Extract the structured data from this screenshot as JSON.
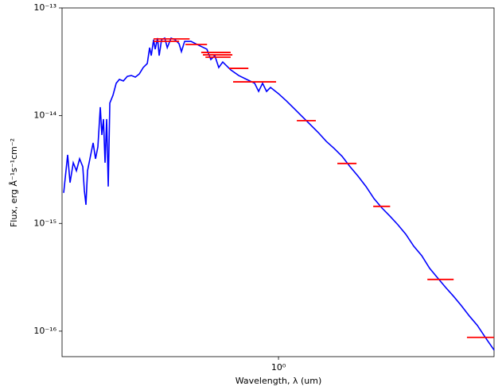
{
  "chart_data": {
    "type": "sed",
    "xlabel": "Wavelength, λ (um)",
    "ylabel": "Flux, erg Å⁻¹s⁻¹cm⁻²",
    "xscale": "log",
    "yscale": "log",
    "xlim": [
      0.194,
      5.12
    ],
    "ylim": [
      5.8e-17,
      1e-13
    ],
    "xticks": [
      {
        "value": 1,
        "label": "10⁰"
      }
    ],
    "yticks": [
      {
        "value": 1e-13,
        "label": "10⁻¹³"
      },
      {
        "value": 1e-14,
        "label": "10⁻¹⁴"
      },
      {
        "value": 1e-15,
        "label": "10⁻¹⁵"
      },
      {
        "value": 1e-16,
        "label": "10⁻¹⁶"
      }
    ],
    "model": {
      "color": "#0000ff",
      "x": [
        0.1964,
        0.2024,
        0.2061,
        0.2112,
        0.2163,
        0.2216,
        0.227,
        0.2297,
        0.2325,
        0.2353,
        0.2396,
        0.2455,
        0.25,
        0.2545,
        0.2592,
        0.2623,
        0.2655,
        0.2687,
        0.272,
        0.2753,
        0.2786,
        0.2854,
        0.2924,
        0.2995,
        0.3087,
        0.3182,
        0.328,
        0.3379,
        0.3483,
        0.3589,
        0.37,
        0.3767,
        0.3813,
        0.3882,
        0.3929,
        0.4,
        0.4049,
        0.4123,
        0.4224,
        0.4305,
        0.4432,
        0.4567,
        0.4707,
        0.4793,
        0.4911,
        0.5152,
        0.547,
        0.5813,
        0.5989,
        0.6172,
        0.636,
        0.6555,
        0.6965,
        0.7398,
        0.786,
        0.8346,
        0.8603,
        0.8863,
        0.9136,
        0.9415,
        1,
        1.062,
        1.128,
        1.198,
        1.273,
        1.352,
        1.436,
        1.525,
        1.62,
        1.72,
        1.828,
        1.941,
        2.062,
        2.19,
        2.326,
        2.47,
        2.623,
        2.786,
        2.96,
        3.143,
        3.339,
        3.546,
        3.766,
        4.0,
        4.249,
        4.513,
        4.793,
        5.123
      ],
      "values": [
        1.92e-15,
        4.33e-15,
        2.39e-15,
        3.66e-15,
        3.08e-15,
        3.98e-15,
        3.36e-15,
        2.02e-15,
        1.49e-15,
        3.08e-15,
        3.98e-15,
        5.59e-15,
        3.98e-15,
        5.13e-15,
        1.2e-14,
        6.62e-15,
        9.3e-15,
        3.66e-15,
        9.3e-15,
        2.2e-15,
        1.31e-14,
        1.55e-14,
        2e-14,
        2.17e-14,
        2.1e-14,
        2.32e-14,
        2.36e-14,
        2.28e-14,
        2.44e-14,
        2.8e-14,
        3.05e-14,
        4.28e-14,
        3.61e-14,
        5.07e-14,
        4.14e-14,
        5.25e-14,
        3.61e-14,
        5.07e-14,
        5.25e-14,
        4.28e-14,
        5.25e-14,
        5.07e-14,
        4.66e-14,
        3.93e-14,
        4.9e-14,
        4.9e-14,
        4.5e-14,
        4.14e-14,
        3.32e-14,
        3.61e-14,
        2.8e-14,
        3.15e-14,
        2.66e-14,
        2.36e-14,
        2.17e-14,
        2e-14,
        1.68e-14,
        2e-14,
        1.68e-14,
        1.83e-14,
        1.6e-14,
        1.37e-14,
        1.16e-14,
        9.78e-15,
        8.25e-15,
        6.97e-15,
        5.78e-15,
        4.96e-15,
        4.19e-15,
        3.36e-15,
        2.74e-15,
        2.2e-15,
        1.7e-15,
        1.39e-15,
        1.17e-15,
        9.73e-16,
        7.94e-16,
        6.15e-16,
        5.02e-16,
        3.83e-16,
        3.12e-16,
        2.55e-16,
        2.11e-16,
        1.72e-16,
        1.38e-16,
        1.13e-16,
        8.74e-17,
        6.67e-17
      ]
    },
    "photometry": {
      "color": "#ff0000",
      "xmin": [
        0.388,
        0.388,
        0.494,
        0.557,
        0.564,
        0.575,
        0.688,
        0.709,
        1.149,
        1.562,
        2.05,
        3.09,
        4.17
      ],
      "xmax": [
        0.51,
        0.471,
        0.582,
        0.696,
        0.705,
        0.696,
        0.796,
        0.982,
        1.327,
        1.806,
        2.33,
        3.77,
        5.12
      ],
      "values": [
        5.16e-14,
        4.9e-14,
        4.58e-14,
        3.86e-14,
        3.67e-14,
        3.49e-14,
        2.75e-14,
        2.06e-14,
        9e-15,
        3.6e-15,
        1.44e-15,
        3.02e-16,
        8.75e-17
      ]
    }
  }
}
